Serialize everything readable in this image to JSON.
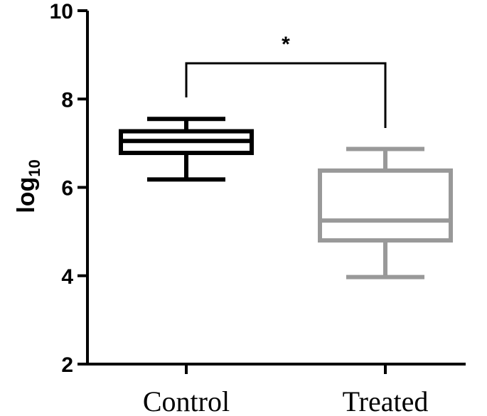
{
  "chart_data": {
    "type": "box",
    "ylabel": "log",
    "ylabel_subscript": "10",
    "ylim": [
      2,
      10
    ],
    "yticks": [
      "2",
      "4",
      "6",
      "8",
      "10"
    ],
    "categories": [
      "Control",
      "Treated"
    ],
    "series": [
      {
        "category": "Control",
        "min": 6.18,
        "q1": 6.78,
        "median": 7.05,
        "q3": 7.27,
        "max": 7.55,
        "color": "#000000"
      },
      {
        "category": "Treated",
        "min": 3.97,
        "q1": 4.8,
        "median": 5.25,
        "q3": 6.38,
        "max": 6.87,
        "color": "#999999"
      }
    ],
    "significance": {
      "label": "*",
      "between": [
        "Control",
        "Treated"
      ]
    },
    "grid": false
  }
}
